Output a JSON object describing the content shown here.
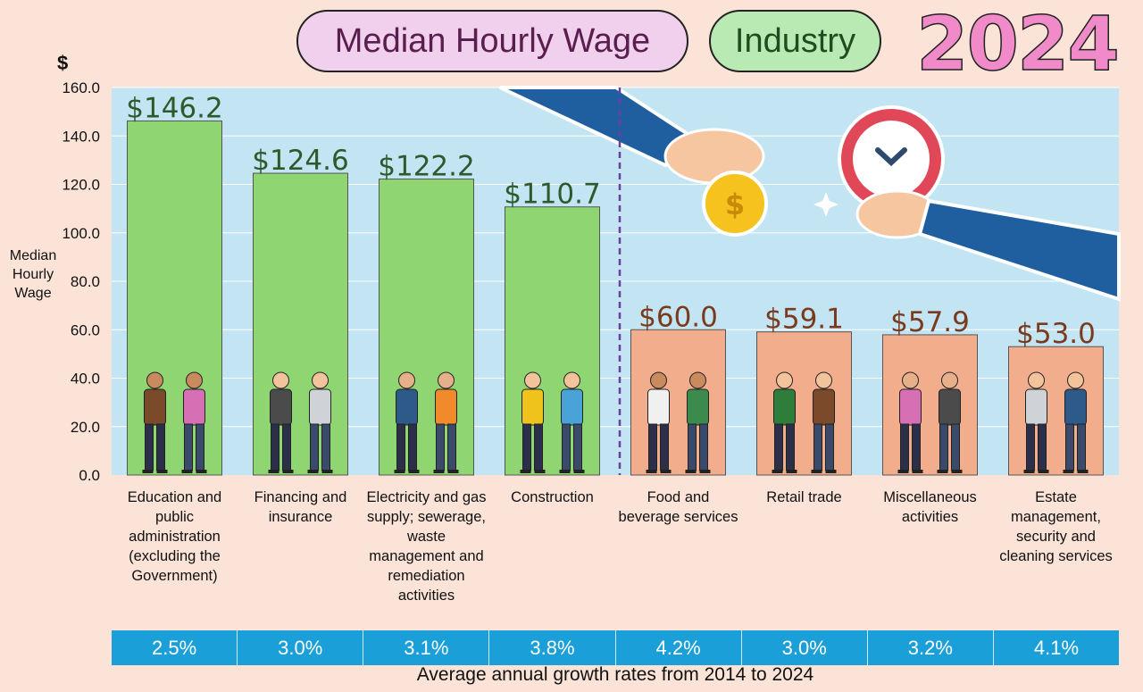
{
  "header": {
    "title": "Median Hourly Wage",
    "tag": "Industry",
    "year": "2024"
  },
  "axis": {
    "currency_symbol": "$",
    "ylabel": "Median\nHourly\nWage",
    "ticks": [
      "0.0",
      "20.0",
      "40.0",
      "60.0",
      "80.0",
      "100.0",
      "120.0",
      "140.0",
      "160.0"
    ]
  },
  "chart_data": {
    "type": "bar",
    "title": "Median Hourly Wage",
    "ylabel": "Median Hourly Wage",
    "ylim": [
      0,
      160
    ],
    "categories": [
      "Education and public administration (excluding the Government)",
      "Financing and insurance",
      "Electricity and gas supply; sewerage, waste management and remediation activities",
      "Construction",
      "Food and beverage services",
      "Retail trade",
      "Miscellaneous activities",
      "Estate management, security and cleaning services"
    ],
    "values": [
      146.2,
      124.6,
      122.2,
      110.7,
      60.0,
      59.1,
      57.9,
      53.0
    ],
    "value_labels": [
      "$146.2",
      "$124.6",
      "$122.2",
      "$110.7",
      "$60.0",
      "$59.1",
      "$57.9",
      "$53.0"
    ],
    "growth_rates": [
      "2.5%",
      "3.0%",
      "3.1%",
      "3.8%",
      "4.2%",
      "3.0%",
      "3.2%",
      "4.1%"
    ],
    "growth_caption": "Average annual growth rates from 2014 to 2024",
    "colors": {
      "high_bar": "#8fd672",
      "low_bar": "#f2ad8c",
      "high_label": "#2c5a2b",
      "low_label": "#7a3a1e",
      "plot_bg": "#c2e4f3",
      "divider": "#6a3fa0"
    },
    "grid": true
  }
}
